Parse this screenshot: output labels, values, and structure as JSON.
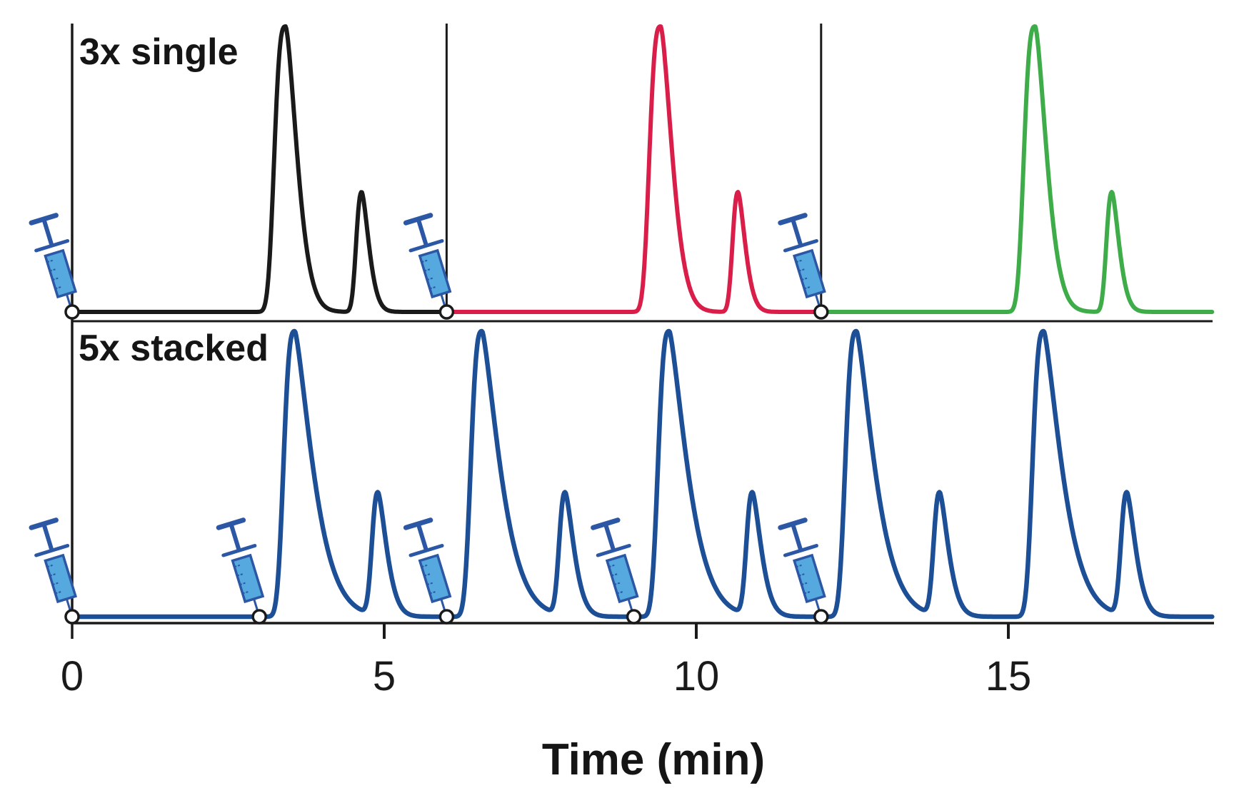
{
  "figure": {
    "description": "Chromatography figure comparing three single injections with five stacked injections",
    "style": {
      "background": "#ffffff",
      "axis_color": "#1a1a1a",
      "syringe_outline": "#2b57a5",
      "syringe_fill": "#55a9de",
      "injection_marker_fill": "#ffffff",
      "injection_marker_stroke": "#1a1a1a"
    }
  },
  "chart_data": {
    "type": "line",
    "xlabel": "Time (min)",
    "x_ticks": [
      0,
      5,
      10,
      15
    ],
    "x_range_min": [
      0,
      18.3
    ],
    "grid": false,
    "legend": false,
    "panels": [
      {
        "label": "3x single",
        "description": "Three separate single-injection runs shown side by side, divided by vertical lines; syringe marks each injection",
        "injection_times_min": [
          0,
          6,
          12
        ],
        "peak_shape": {
          "major": {
            "wl": 0.215,
            "pl": 3.0,
            "wr": 0.26,
            "pr": 1.55
          },
          "minor": {
            "wl": 0.115,
            "pl": 2.4,
            "wr": 0.165,
            "pr": 1.55
          }
        },
        "series": [
          {
            "name": "injection-1",
            "color": "#1a1a1a",
            "peaks": [
              {
                "apex_min": 3.42,
                "height": 1.0,
                "type": "major"
              },
              {
                "apex_min": 4.64,
                "height": 0.42,
                "type": "minor"
              }
            ]
          },
          {
            "name": "injection-2",
            "color": "#d91e49",
            "peaks": [
              {
                "apex_min": 9.43,
                "height": 1.0,
                "type": "major"
              },
              {
                "apex_min": 10.67,
                "height": 0.42,
                "type": "minor"
              }
            ]
          },
          {
            "name": "injection-3",
            "color": "#3eac49",
            "peaks": [
              {
                "apex_min": 15.43,
                "height": 1.0,
                "type": "major"
              },
              {
                "apex_min": 16.66,
                "height": 0.42,
                "type": "minor"
              }
            ]
          }
        ]
      },
      {
        "label": "5x stacked",
        "description": "Five stacked injections in a single continuous run, injected every 3 minutes; syringe marks each injection",
        "injection_times_min": [
          0,
          3,
          6,
          9,
          12
        ],
        "peak_shape": {
          "major": {
            "wl": 0.215,
            "pl": 3.0,
            "wr": 0.4,
            "pr": 1.35
          },
          "minor": {
            "wl": 0.125,
            "pl": 2.4,
            "wr": 0.2,
            "pr": 1.5
          }
        },
        "series": [
          {
            "name": "stacked-injections",
            "color": "#1d4f97",
            "peaks": [
              {
                "apex_min": 3.57,
                "height": 1.0,
                "type": "major"
              },
              {
                "apex_min": 4.9,
                "height": 0.43,
                "type": "minor"
              },
              {
                "apex_min": 6.57,
                "height": 1.0,
                "type": "major"
              },
              {
                "apex_min": 7.9,
                "height": 0.43,
                "type": "minor"
              },
              {
                "apex_min": 9.57,
                "height": 1.0,
                "type": "major"
              },
              {
                "apex_min": 10.9,
                "height": 0.43,
                "type": "minor"
              },
              {
                "apex_min": 12.57,
                "height": 1.0,
                "type": "major"
              },
              {
                "apex_min": 13.9,
                "height": 0.43,
                "type": "minor"
              },
              {
                "apex_min": 15.57,
                "height": 1.0,
                "type": "major"
              },
              {
                "apex_min": 16.9,
                "height": 0.43,
                "type": "minor"
              }
            ]
          }
        ]
      }
    ]
  }
}
